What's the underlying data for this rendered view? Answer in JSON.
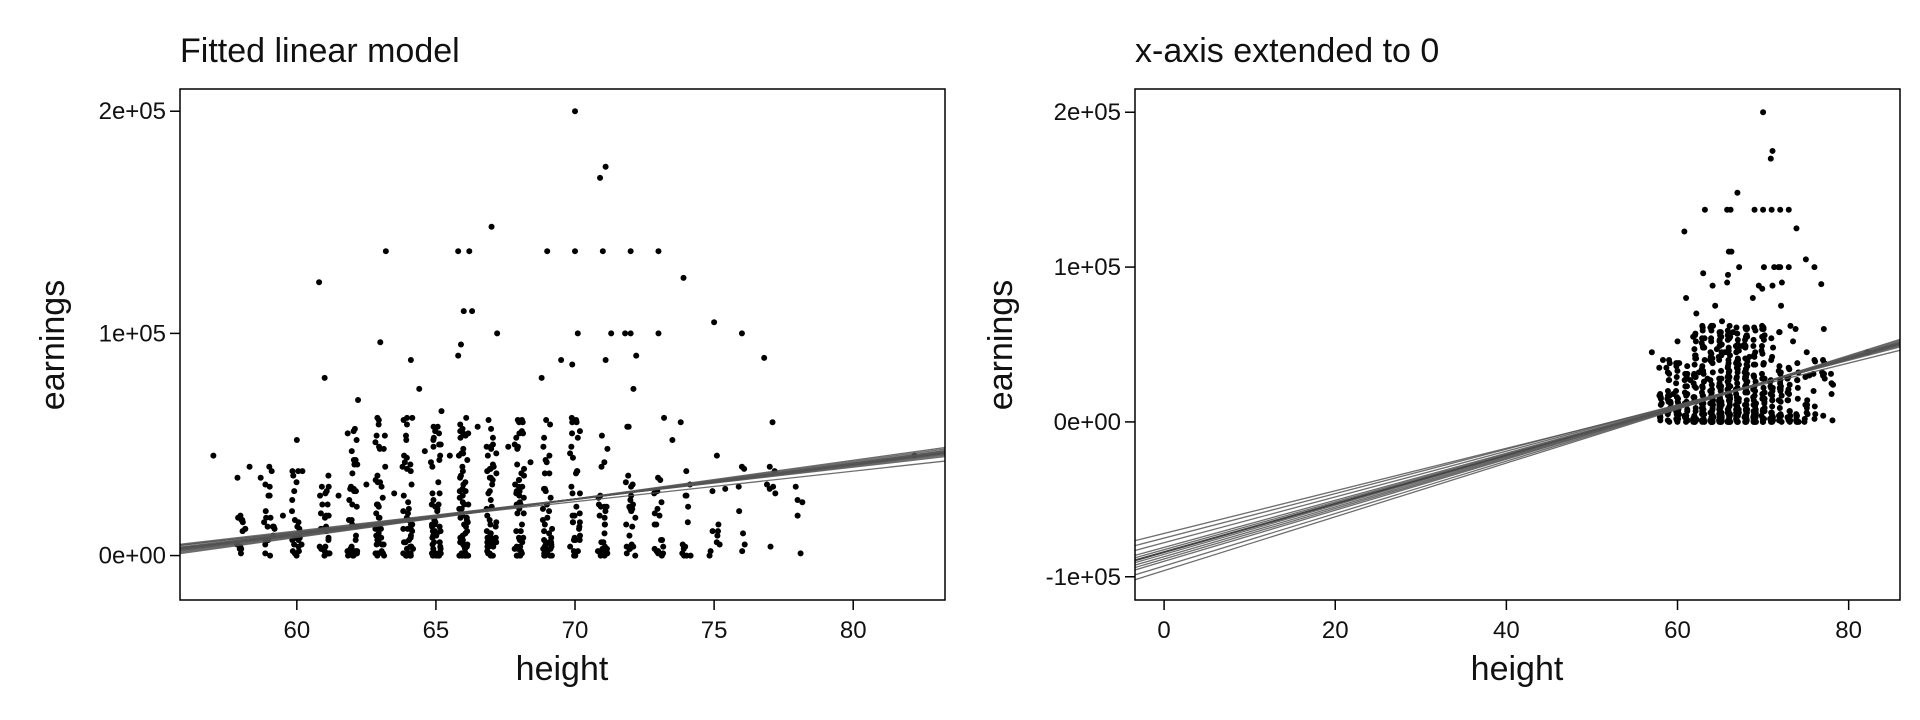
{
  "chart_data": [
    {
      "type": "scatter",
      "title": "Fitted linear model",
      "xlabel": "height",
      "ylabel": "earnings",
      "xlim": [
        55.8,
        83.3
      ],
      "ylim": [
        -20000,
        210000
      ],
      "xticks": [
        60,
        65,
        70,
        75,
        80
      ],
      "yticks": [
        0,
        100000,
        200000
      ],
      "xtick_labels": [
        "60",
        "65",
        "70",
        "75",
        "80"
      ],
      "ytick_labels": [
        "0e+00",
        "1e+05",
        "2e+05"
      ],
      "fitted_lines": [
        {
          "intercept": -84078,
          "slope": 1563
        },
        {
          "intercept": -87000,
          "slope": 1605
        },
        {
          "intercept": -81000,
          "slope": 1520
        },
        {
          "intercept": -90000,
          "slope": 1648
        },
        {
          "intercept": -78000,
          "slope": 1478
        },
        {
          "intercept": -93000,
          "slope": 1692
        },
        {
          "intercept": -75000,
          "slope": 1435
        },
        {
          "intercept": -85500,
          "slope": 1585
        },
        {
          "intercept": -82500,
          "slope": 1542
        },
        {
          "intercept": -88500,
          "slope": 1627
        },
        {
          "intercept": -72000,
          "slope": 1375
        },
        {
          "intercept": -96000,
          "slope": 1736
        }
      ],
      "points": [
        [
          57,
          45000
        ],
        [
          58,
          3000
        ],
        [
          58.3,
          40000
        ],
        [
          58.7,
          35000
        ],
        [
          59.2,
          12000
        ],
        [
          59.5,
          18000
        ],
        [
          60,
          52000
        ],
        [
          60.2,
          38000
        ],
        [
          60.8,
          123000
        ],
        [
          61,
          80000
        ],
        [
          61.5,
          27000
        ],
        [
          62.2,
          70000
        ],
        [
          62.5,
          32000
        ],
        [
          63,
          96000
        ],
        [
          63.2,
          137000
        ],
        [
          63.5,
          28000
        ],
        [
          63.8,
          40000
        ],
        [
          64.1,
          88000
        ],
        [
          64.4,
          75000
        ],
        [
          64.6,
          47000
        ],
        [
          65.2,
          65000
        ],
        [
          65.5,
          45000
        ],
        [
          65.8,
          137000
        ],
        [
          66,
          110000
        ],
        [
          66.2,
          137000
        ],
        [
          66.3,
          110000
        ],
        [
          65.9,
          95000
        ],
        [
          65.8,
          90000
        ],
        [
          66.5,
          58000
        ],
        [
          67,
          148000
        ],
        [
          67.2,
          100000
        ],
        [
          67.6,
          49000
        ],
        [
          68,
          55000
        ],
        [
          68.4,
          42000
        ],
        [
          68.8,
          80000
        ],
        [
          69,
          137000
        ],
        [
          69.5,
          88000
        ],
        [
          70,
          200000
        ],
        [
          70,
          137000
        ],
        [
          69.9,
          86000
        ],
        [
          70.1,
          100000
        ],
        [
          70.9,
          170000
        ],
        [
          71.1,
          175000
        ],
        [
          71,
          137000
        ],
        [
          71.1,
          88000
        ],
        [
          71.3,
          100000
        ],
        [
          72,
          137000
        ],
        [
          71.8,
          100000
        ],
        [
          72.2,
          90000
        ],
        [
          72,
          100000
        ],
        [
          72.1,
          75000
        ],
        [
          73,
          137000
        ],
        [
          73,
          100000
        ],
        [
          73.2,
          62000
        ],
        [
          73.5,
          52000
        ],
        [
          73.8,
          60000
        ],
        [
          73.9,
          125000
        ],
        [
          74,
          38000
        ],
        [
          75,
          105000
        ],
        [
          75.1,
          45000
        ],
        [
          75.2,
          5000
        ],
        [
          75.4,
          30000
        ],
        [
          76,
          100000
        ],
        [
          76,
          40000
        ],
        [
          75.9,
          20000
        ],
        [
          76.1,
          5000
        ],
        [
          76.8,
          89000
        ],
        [
          77.1,
          60000
        ],
        [
          77,
          40000
        ],
        [
          76.9,
          32000
        ],
        [
          77.2,
          28000
        ],
        [
          78,
          25000
        ],
        [
          82.2,
          45000
        ]
      ]
    },
    {
      "type": "scatter",
      "title": "x-axis extended to 0",
      "xlabel": "height",
      "ylabel": "earnings",
      "xlim": [
        -3.4,
        86
      ],
      "ylim": [
        -115000,
        215000
      ],
      "xticks": [
        0,
        20,
        40,
        60,
        80
      ],
      "yticks": [
        -100000,
        0,
        100000,
        200000
      ],
      "xtick_labels": [
        "0",
        "20",
        "40",
        "60",
        "80"
      ],
      "ytick_labels": [
        "-1e+05",
        "0e+00",
        "1e+05",
        "2e+05"
      ],
      "fitted_lines": [
        {
          "intercept": -84078,
          "slope": 1563
        },
        {
          "intercept": -87000,
          "slope": 1605
        },
        {
          "intercept": -81000,
          "slope": 1520
        },
        {
          "intercept": -90000,
          "slope": 1648
        },
        {
          "intercept": -78000,
          "slope": 1478
        },
        {
          "intercept": -93000,
          "slope": 1692
        },
        {
          "intercept": -75000,
          "slope": 1435
        },
        {
          "intercept": -85500,
          "slope": 1585
        },
        {
          "intercept": -82500,
          "slope": 1542
        },
        {
          "intercept": -88500,
          "slope": 1627
        },
        {
          "intercept": -72000,
          "slope": 1375
        },
        {
          "intercept": -96000,
          "slope": 1736
        }
      ],
      "points": [
        [
          57,
          45000
        ],
        [
          58,
          3000
        ],
        [
          58.3,
          40000
        ],
        [
          58.7,
          35000
        ],
        [
          59.2,
          12000
        ],
        [
          59.5,
          18000
        ],
        [
          60,
          52000
        ],
        [
          60.2,
          38000
        ],
        [
          60.8,
          123000
        ],
        [
          61,
          80000
        ],
        [
          61.5,
          27000
        ],
        [
          62.2,
          70000
        ],
        [
          62.5,
          32000
        ],
        [
          63,
          96000
        ],
        [
          63.2,
          137000
        ],
        [
          63.5,
          28000
        ],
        [
          63.8,
          40000
        ],
        [
          64.1,
          88000
        ],
        [
          64.4,
          75000
        ],
        [
          64.6,
          47000
        ],
        [
          65.2,
          65000
        ],
        [
          65.5,
          45000
        ],
        [
          65.8,
          137000
        ],
        [
          66,
          110000
        ],
        [
          66.2,
          137000
        ],
        [
          66.3,
          110000
        ],
        [
          65.9,
          95000
        ],
        [
          65.8,
          90000
        ],
        [
          66.5,
          58000
        ],
        [
          67,
          148000
        ],
        [
          67.2,
          100000
        ],
        [
          67.6,
          49000
        ],
        [
          68,
          55000
        ],
        [
          68.4,
          42000
        ],
        [
          68.8,
          80000
        ],
        [
          69,
          137000
        ],
        [
          69.5,
          88000
        ],
        [
          70,
          200000
        ],
        [
          70,
          137000
        ],
        [
          69.9,
          86000
        ],
        [
          70.1,
          100000
        ],
        [
          70.9,
          170000
        ],
        [
          71.1,
          175000
        ],
        [
          71,
          137000
        ],
        [
          71.1,
          88000
        ],
        [
          71.3,
          100000
        ],
        [
          72,
          137000
        ],
        [
          71.8,
          100000
        ],
        [
          72.2,
          90000
        ],
        [
          72,
          100000
        ],
        [
          72.1,
          75000
        ],
        [
          73,
          137000
        ],
        [
          73,
          100000
        ],
        [
          73.2,
          62000
        ],
        [
          73.5,
          52000
        ],
        [
          73.8,
          60000
        ],
        [
          73.9,
          125000
        ],
        [
          74,
          38000
        ],
        [
          75,
          105000
        ],
        [
          75.1,
          45000
        ],
        [
          75.2,
          5000
        ],
        [
          75.4,
          30000
        ],
        [
          76,
          100000
        ],
        [
          76,
          40000
        ],
        [
          75.9,
          20000
        ],
        [
          76.1,
          5000
        ],
        [
          76.8,
          89000
        ],
        [
          77.1,
          60000
        ],
        [
          77,
          40000
        ],
        [
          76.9,
          32000
        ],
        [
          77.2,
          28000
        ],
        [
          78,
          25000
        ],
        [
          82.2,
          45000
        ]
      ]
    }
  ]
}
